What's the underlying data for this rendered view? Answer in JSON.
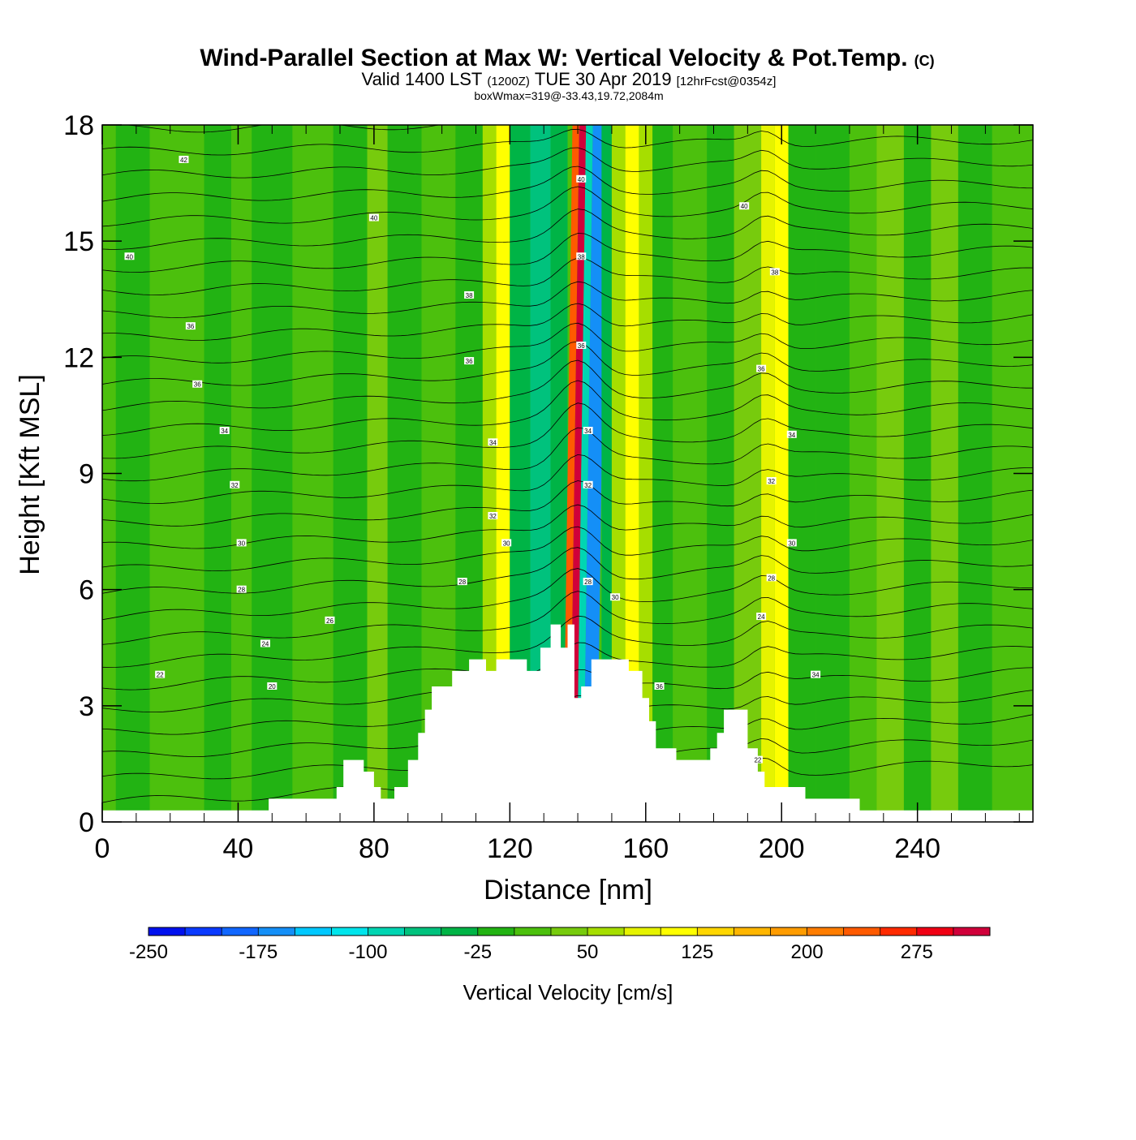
{
  "header": {
    "title": "Wind-Parallel Section at Max W: Vertical Velocity & Pot.Temp.",
    "copyright": "(C)",
    "valid_prefix": "Valid 1400 LST",
    "valid_zulu": "(1200Z)",
    "valid_date": "TUE 30 Apr 2019",
    "forecast": "[12hrFcst@0354z]",
    "boxwmax": "boxWmax=319@-33.43,19.72,2084m"
  },
  "chart_data": {
    "type": "heatmap",
    "xlabel": "Distance [nm]",
    "ylabel": "Height [Kft MSL]",
    "xlim": [
      0,
      274
    ],
    "ylim": [
      0,
      18
    ],
    "x_ticks": [
      "0",
      "40",
      "80",
      "120",
      "160",
      "200",
      "240"
    ],
    "y_ticks": [
      "0",
      "3",
      "6",
      "9",
      "12",
      "15",
      "18"
    ],
    "terrain_kft": [
      [
        0,
        0.3
      ],
      [
        49,
        0.3
      ],
      [
        49,
        0.6
      ],
      [
        69,
        0.6
      ],
      [
        69,
        0.9
      ],
      [
        71,
        0.9
      ],
      [
        71,
        1.6
      ],
      [
        77,
        1.6
      ],
      [
        77,
        1.3
      ],
      [
        80,
        1.3
      ],
      [
        80,
        0.9
      ],
      [
        82,
        0.9
      ],
      [
        82,
        0.6
      ],
      [
        86,
        0.6
      ],
      [
        86,
        0.9
      ],
      [
        90,
        0.9
      ],
      [
        90,
        1.6
      ],
      [
        93,
        1.6
      ],
      [
        93,
        2.3
      ],
      [
        95,
        2.3
      ],
      [
        95,
        2.9
      ],
      [
        97,
        2.9
      ],
      [
        97,
        3.5
      ],
      [
        103,
        3.5
      ],
      [
        103,
        3.9
      ],
      [
        108,
        3.9
      ],
      [
        108,
        4.2
      ],
      [
        113,
        4.2
      ],
      [
        113,
        3.9
      ],
      [
        116,
        3.9
      ],
      [
        116,
        4.2
      ],
      [
        125,
        4.2
      ],
      [
        125,
        3.9
      ],
      [
        129,
        3.9
      ],
      [
        129,
        4.5
      ],
      [
        132,
        4.5
      ],
      [
        132,
        5.1
      ],
      [
        135,
        5.1
      ],
      [
        135,
        4.5
      ],
      [
        137,
        4.5
      ],
      [
        137,
        5.1
      ],
      [
        139,
        5.1
      ],
      [
        139,
        3.2
      ],
      [
        141,
        3.2
      ],
      [
        141,
        3.5
      ],
      [
        144,
        3.5
      ],
      [
        144,
        4.2
      ],
      [
        155,
        4.2
      ],
      [
        155,
        3.9
      ],
      [
        159,
        3.9
      ],
      [
        159,
        3.2
      ],
      [
        161,
        3.2
      ],
      [
        161,
        2.6
      ],
      [
        163,
        2.6
      ],
      [
        163,
        1.9
      ],
      [
        169,
        1.9
      ],
      [
        169,
        1.6
      ],
      [
        179,
        1.6
      ],
      [
        179,
        1.9
      ],
      [
        181,
        1.9
      ],
      [
        181,
        2.3
      ],
      [
        183,
        2.3
      ],
      [
        183,
        2.9
      ],
      [
        190,
        2.9
      ],
      [
        190,
        1.9
      ],
      [
        193,
        1.9
      ],
      [
        193,
        1.3
      ],
      [
        195,
        1.3
      ],
      [
        195,
        0.9
      ],
      [
        207,
        0.9
      ],
      [
        207,
        0.6
      ],
      [
        223,
        0.6
      ],
      [
        223,
        0.3
      ],
      [
        274,
        0.3
      ]
    ],
    "vertical_velocity_bands": [
      {
        "x0": 0,
        "x1": 4,
        "value": 0
      },
      {
        "x0": 4,
        "x1": 14,
        "value": -10
      },
      {
        "x0": 14,
        "x1": 30,
        "value": 5
      },
      {
        "x0": 30,
        "x1": 38,
        "value": -20
      },
      {
        "x0": 38,
        "x1": 44,
        "value": 20
      },
      {
        "x0": 44,
        "x1": 56,
        "value": -10
      },
      {
        "x0": 56,
        "x1": 68,
        "value": 10
      },
      {
        "x0": 68,
        "x1": 78,
        "value": -15
      },
      {
        "x0": 78,
        "x1": 84,
        "value": 25
      },
      {
        "x0": 84,
        "x1": 94,
        "value": -10
      },
      {
        "x0": 94,
        "x1": 104,
        "value": 20
      },
      {
        "x0": 104,
        "x1": 112,
        "value": -20
      },
      {
        "x0": 112,
        "x1": 116,
        "value": 60
      },
      {
        "x0": 116,
        "x1": 120,
        "value": 110
      },
      {
        "x0": 120,
        "x1": 126,
        "value": -40
      },
      {
        "x0": 126,
        "x1": 132,
        "value": -75
      },
      {
        "x0": 132,
        "x1": 137,
        "value": -30
      },
      {
        "x0": 137,
        "x1": 139,
        "value": 230
      },
      {
        "x0": 139,
        "x1": 141,
        "value": 300
      },
      {
        "x0": 141,
        "x1": 143,
        "value": -100
      },
      {
        "x0": 143,
        "x1": 147,
        "value": -170
      },
      {
        "x0": 147,
        "x1": 150,
        "value": -40
      },
      {
        "x0": 150,
        "x1": 154,
        "value": 70
      },
      {
        "x0": 154,
        "x1": 158,
        "value": 110
      },
      {
        "x0": 158,
        "x1": 162,
        "value": 60
      },
      {
        "x0": 162,
        "x1": 168,
        "value": -15
      },
      {
        "x0": 168,
        "x1": 178,
        "value": 10
      },
      {
        "x0": 178,
        "x1": 186,
        "value": -20
      },
      {
        "x0": 186,
        "x1": 194,
        "value": 30
      },
      {
        "x0": 194,
        "x1": 198,
        "value": 80
      },
      {
        "x0": 198,
        "x1": 202,
        "value": 120
      },
      {
        "x0": 202,
        "x1": 210,
        "value": -10
      },
      {
        "x0": 210,
        "x1": 220,
        "value": -25
      },
      {
        "x0": 220,
        "x1": 228,
        "value": 10
      },
      {
        "x0": 228,
        "x1": 236,
        "value": 40
      },
      {
        "x0": 236,
        "x1": 244,
        "value": -15
      },
      {
        "x0": 244,
        "x1": 252,
        "value": 25
      },
      {
        "x0": 252,
        "x1": 262,
        "value": -10
      },
      {
        "x0": 262,
        "x1": 274,
        "value": 5
      }
    ],
    "theta_contour_labels": [
      {
        "x": 24,
        "y": 17.1,
        "text": "42"
      },
      {
        "x": 80,
        "y": 15.6,
        "text": "40"
      },
      {
        "x": 8,
        "y": 14.6,
        "text": "40"
      },
      {
        "x": 108,
        "y": 13.6,
        "text": "38"
      },
      {
        "x": 26,
        "y": 12.8,
        "text": "36"
      },
      {
        "x": 108,
        "y": 11.9,
        "text": "36"
      },
      {
        "x": 28,
        "y": 11.3,
        "text": "36"
      },
      {
        "x": 36,
        "y": 10.1,
        "text": "34"
      },
      {
        "x": 115,
        "y": 9.8,
        "text": "34"
      },
      {
        "x": 39,
        "y": 8.7,
        "text": "32"
      },
      {
        "x": 115,
        "y": 7.9,
        "text": "32"
      },
      {
        "x": 119,
        "y": 7.2,
        "text": "30"
      },
      {
        "x": 41,
        "y": 7.2,
        "text": "30"
      },
      {
        "x": 106,
        "y": 6.2,
        "text": "28"
      },
      {
        "x": 41,
        "y": 6.0,
        "text": "28"
      },
      {
        "x": 67,
        "y": 5.2,
        "text": "26"
      },
      {
        "x": 48,
        "y": 4.6,
        "text": "24"
      },
      {
        "x": 17,
        "y": 3.8,
        "text": "22"
      },
      {
        "x": 50,
        "y": 3.5,
        "text": "20"
      },
      {
        "x": 141,
        "y": 16.6,
        "text": "40"
      },
      {
        "x": 141,
        "y": 14.6,
        "text": "38"
      },
      {
        "x": 141,
        "y": 12.3,
        "text": "36"
      },
      {
        "x": 143,
        "y": 10.1,
        "text": "34"
      },
      {
        "x": 143,
        "y": 8.7,
        "text": "32"
      },
      {
        "x": 143,
        "y": 6.2,
        "text": "28"
      },
      {
        "x": 151,
        "y": 5.8,
        "text": "30"
      },
      {
        "x": 164,
        "y": 3.5,
        "text": "36"
      },
      {
        "x": 189,
        "y": 15.9,
        "text": "40"
      },
      {
        "x": 198,
        "y": 14.2,
        "text": "38"
      },
      {
        "x": 194,
        "y": 11.7,
        "text": "36"
      },
      {
        "x": 203,
        "y": 10.0,
        "text": "34"
      },
      {
        "x": 197,
        "y": 8.8,
        "text": "32"
      },
      {
        "x": 203,
        "y": 7.2,
        "text": "30"
      },
      {
        "x": 197,
        "y": 6.3,
        "text": "28"
      },
      {
        "x": 194,
        "y": 5.3,
        "text": "24"
      },
      {
        "x": 210,
        "y": 3.8,
        "text": "34"
      },
      {
        "x": 193,
        "y": 1.6,
        "text": "22"
      }
    ],
    "colorbar": {
      "title": "Vertical Velocity [cm/s]",
      "min": -250,
      "max": 325,
      "step": 25,
      "tick_labels": [
        "-250",
        "-175",
        "-100",
        "-25",
        "50",
        "125",
        "200",
        "275"
      ],
      "colors": [
        "#0011ee",
        "#0a3aff",
        "#1166ff",
        "#148ff7",
        "#00c8ff",
        "#00e5ec",
        "#00d5b2",
        "#00c27d",
        "#00b446",
        "#22b313",
        "#4cc00d",
        "#77cb0d",
        "#a6de00",
        "#e6f300",
        "#ffff00",
        "#ffd600",
        "#ffb600",
        "#ff9c00",
        "#ff7d00",
        "#ff5a00",
        "#ff2a00",
        "#f00014",
        "#d0003a"
      ]
    }
  }
}
